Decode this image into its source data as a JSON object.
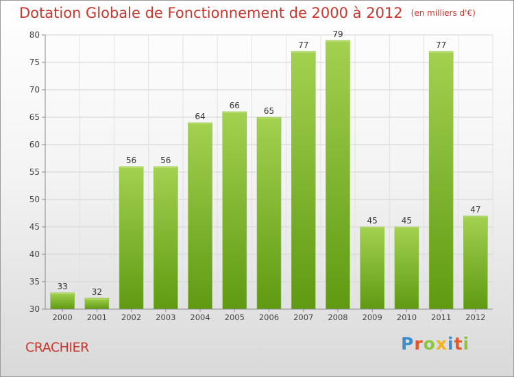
{
  "header": {
    "title": "Dotation Globale de Fonctionnement de 2000 à 2012",
    "unit": "(en milliers d'€)"
  },
  "footer": {
    "place": "CRACHIER",
    "brand": "Proxiti",
    "brand_colors": [
      "#3a8fd0",
      "#e8542a",
      "#8cc63e",
      "#f3b21b",
      "#3a8fd0",
      "#e8542a",
      "#8cc63e"
    ]
  },
  "colors": {
    "title": "#c8372d",
    "bar_top": "#a3d150",
    "bar_bottom": "#5f9a12"
  },
  "chart_data": {
    "type": "bar",
    "title": "Dotation Globale de Fonctionnement de 2000 à 2012",
    "subtitle": "(en milliers d'€)",
    "xlabel": "",
    "ylabel": "",
    "categories": [
      "2000",
      "2001",
      "2002",
      "2003",
      "2004",
      "2005",
      "2006",
      "2007",
      "2008",
      "2009",
      "2010",
      "2011",
      "2012"
    ],
    "values": [
      33,
      32,
      56,
      56,
      64,
      66,
      65,
      77,
      79,
      45,
      45,
      77,
      47
    ],
    "ylim": [
      30,
      80
    ],
    "yticks": [
      30,
      35,
      40,
      45,
      50,
      55,
      60,
      65,
      70,
      75,
      80
    ],
    "grid": true,
    "data_labels": true
  }
}
